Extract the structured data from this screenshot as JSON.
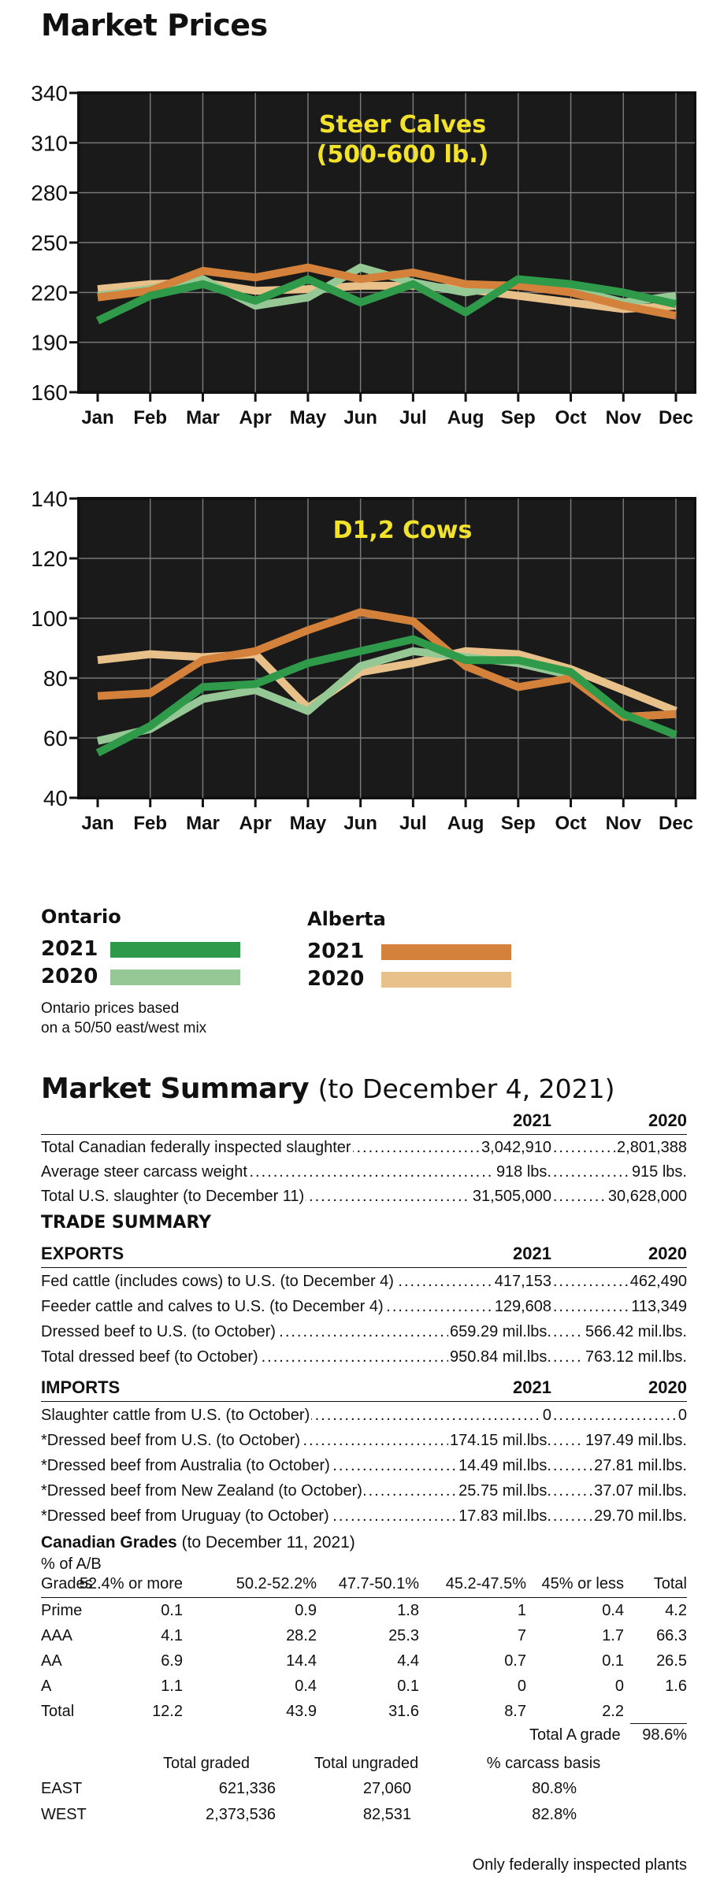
{
  "page_title": "Market Prices",
  "chart_data": [
    {
      "type": "line",
      "title": "Steer Calves",
      "subtitle": "(500-600 lb.)",
      "categories": [
        "Jan",
        "Feb",
        "Mar",
        "Apr",
        "May",
        "Jun",
        "Jul",
        "Aug",
        "Sep",
        "Oct",
        "Nov",
        "Dec"
      ],
      "ylim": [
        160,
        340
      ],
      "yticks": [
        "340",
        "310",
        "280",
        "250",
        "220",
        "190",
        "160"
      ],
      "grid": true,
      "series": [
        {
          "name": "Ontario 2021",
          "color": "#2e9a4a",
          "values": [
            203,
            218,
            225,
            215,
            228,
            214,
            225,
            208,
            228,
            225,
            220,
            213
          ]
        },
        {
          "name": "Ontario 2020",
          "color": "#96c896",
          "values": [
            218,
            222,
            228,
            212,
            217,
            235,
            226,
            220,
            225,
            222,
            214,
            218
          ]
        },
        {
          "name": "Alberta 2021",
          "color": "#d4823b",
          "values": [
            217,
            221,
            233,
            229,
            235,
            228,
            232,
            225,
            224,
            220,
            212,
            206
          ]
        },
        {
          "name": "Alberta 2020",
          "color": "#e8c18a",
          "values": [
            222,
            225,
            226,
            221,
            222,
            224,
            224,
            222,
            218,
            214,
            210,
            212
          ]
        }
      ]
    },
    {
      "type": "line",
      "title": "D1,2 Cows",
      "categories": [
        "Jan",
        "Feb",
        "Mar",
        "Apr",
        "May",
        "Jun",
        "Jul",
        "Aug",
        "Sep",
        "Oct",
        "Nov",
        "Dec"
      ],
      "ylim": [
        40,
        140
      ],
      "yticks": [
        "140",
        "120",
        "100",
        "80",
        "60",
        "40"
      ],
      "grid": true,
      "series": [
        {
          "name": "Ontario 2021",
          "color": "#2e9a4a",
          "values": [
            55,
            64,
            77,
            78,
            85,
            89,
            93,
            86,
            86,
            82,
            68,
            61
          ]
        },
        {
          "name": "Ontario 2020",
          "color": "#96c896",
          "values": [
            59,
            63,
            73,
            76,
            69,
            84,
            89,
            87,
            85,
            81,
            67,
            68
          ]
        },
        {
          "name": "Alberta 2021",
          "color": "#d4823b",
          "values": [
            74,
            75,
            86,
            89,
            96,
            102,
            99,
            84,
            77,
            80,
            67,
            68
          ]
        },
        {
          "name": "Alberta 2020",
          "color": "#e8c18a",
          "values": [
            86,
            88,
            87,
            88,
            70,
            82,
            85,
            89,
            88,
            83,
            76,
            69
          ]
        }
      ]
    }
  ],
  "legend": {
    "ontario": "Ontario",
    "alberta": "Alberta",
    "y2021": "2021",
    "y2020": "2020",
    "colors": {
      "on21": "#2e9a4a",
      "on20": "#96c896",
      "ab21": "#d4823b",
      "ab20": "#e8c18a"
    },
    "note_line1": "Ontario prices based",
    "note_line2": "on a 50/50 east/west mix"
  },
  "summary": {
    "title": "Market Summary",
    "subtitle": "(to December 4, 2021)",
    "col1": "2021",
    "col2": "2020",
    "rows": [
      {
        "label": "Total Canadian federally inspected slaughter",
        "v1": "3,042,910",
        "v2": "2,801,388"
      },
      {
        "label": "Average steer carcass weight",
        "v1": "918 lbs.",
        "v2": "915 lbs."
      },
      {
        "label": "Total U.S. slaughter (to December 11)",
        "v1": "31,505,000",
        "v2": "30,628,000"
      }
    ]
  },
  "trade": {
    "title": "TRADE SUMMARY",
    "exports_label": "EXPORTS",
    "imports_label": "IMPORTS",
    "col1": "2021",
    "col2": "2020",
    "exports": [
      {
        "label": "Fed cattle (includes cows) to U.S. (to December 4)",
        "v1": "417,153",
        "v2": "462,490"
      },
      {
        "label": "Feeder cattle and calves to U.S. (to December 4)",
        "v1": "129,608",
        "v2": "113,349"
      },
      {
        "label": "Dressed beef to U.S. (to October)",
        "v1": "659.29 mil.lbs.",
        "v2": "566.42 mil.lbs."
      },
      {
        "label": "Total dressed beef (to October)",
        "v1": "950.84 mil.lbs.",
        "v2": "763.12 mil.lbs."
      }
    ],
    "imports": [
      {
        "label": "Slaughter cattle from U.S. (to October)",
        "v1": "0",
        "v2": "0"
      },
      {
        "label": "*Dressed beef from U.S. (to October)",
        "v1": "174.15 mil.lbs.",
        "v2": "197.49 mil.lbs."
      },
      {
        "label": "*Dressed beef from Australia (to October)",
        "v1": "14.49 mil.lbs.",
        "v2": "27.81 mil.lbs."
      },
      {
        "label": "*Dressed beef from New Zealand (to October)",
        "v1": "25.75 mil.lbs.",
        "v2": "37.07 mil.lbs."
      },
      {
        "label": "*Dressed beef from Uruguay (to October)",
        "v1": "17.83 mil.lbs.",
        "v2": "29.70 mil.lbs."
      }
    ]
  },
  "grades": {
    "title": "Canadian Grades",
    "subtitle": "(to December 11, 2021)",
    "pct_label": "% of A/B",
    "headers": [
      "Grades",
      "52.4% or more",
      "50.2-52.2%",
      "47.7-50.1%",
      "45.2-47.5%",
      "45% or less",
      "Total"
    ],
    "rows": [
      [
        "Prime",
        "0.1",
        "0.9",
        "1.8",
        "1",
        "0.4",
        "4.2"
      ],
      [
        "AAA",
        "4.1",
        "28.2",
        "25.3",
        "7",
        "1.7",
        "66.3"
      ],
      [
        "AA",
        "6.9",
        "14.4",
        "4.4",
        "0.7",
        "0.1",
        "26.5"
      ],
      [
        "A",
        "1.1",
        "0.4",
        "0.1",
        "0",
        "0",
        "1.6"
      ],
      [
        "Total",
        "12.2",
        "43.9",
        "31.6",
        "8.7",
        "2.2",
        ""
      ]
    ],
    "total_a_label": "Total A grade",
    "total_a_value": "98.6%",
    "graded_headers": [
      "Total graded",
      "Total ungraded",
      "% carcass basis"
    ],
    "graded_rows": [
      [
        "EAST",
        "621,336",
        "27,060",
        "80.8%"
      ],
      [
        "WEST",
        "2,373,536",
        "82,531",
        "82.8%"
      ]
    ],
    "footnote": "Only federally inspected plants"
  }
}
